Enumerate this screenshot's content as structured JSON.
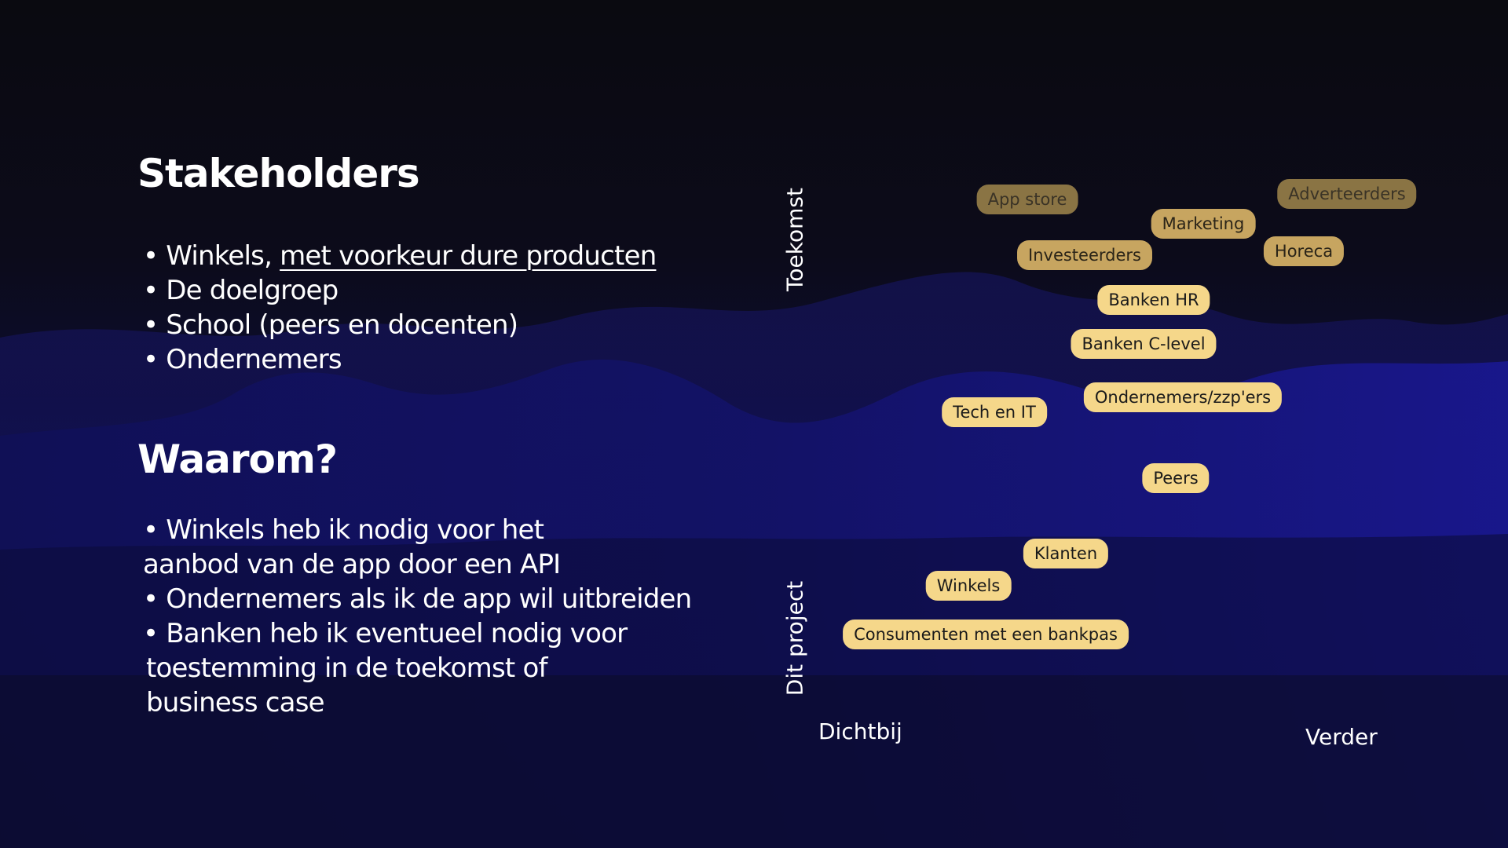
{
  "stakeholders": {
    "title": "Stakeholders",
    "items": [
      {
        "prefix": "• Winkels, ",
        "emphasis": "met voorkeur dure producten"
      },
      {
        "text": "• De doelgroep"
      },
      {
        "text": "• School (peers en docenten)"
      },
      {
        "text": "•  Ondernemers"
      }
    ]
  },
  "waarom": {
    "title": "Waarom?",
    "items": [
      {
        "line1": "• Winkels heb ik nodig voor het",
        "line2": "aanbod van de app door een API"
      },
      {
        "line1": "• Ondernemers als ik de app wil uitbreiden"
      },
      {
        "line1": "• Banken heb ik eventueel nodig voor",
        "line2": "toestemming in de toekomst of",
        "line3": "business case"
      }
    ]
  },
  "map": {
    "axis_future": "Toekomst",
    "axis_project": "Dit project",
    "axis_near": "Dichtbij",
    "axis_far": "Verder",
    "tags": [
      "App store",
      "Adverteerders",
      "Marketing",
      "Investeerders",
      "Horeca",
      "Banken HR",
      "Banken C-level",
      "Ondernemers/zzp'ers",
      "Tech en IT",
      "Peers",
      "Klanten",
      "Winkels",
      "Consumenten met een bankpas"
    ]
  }
}
